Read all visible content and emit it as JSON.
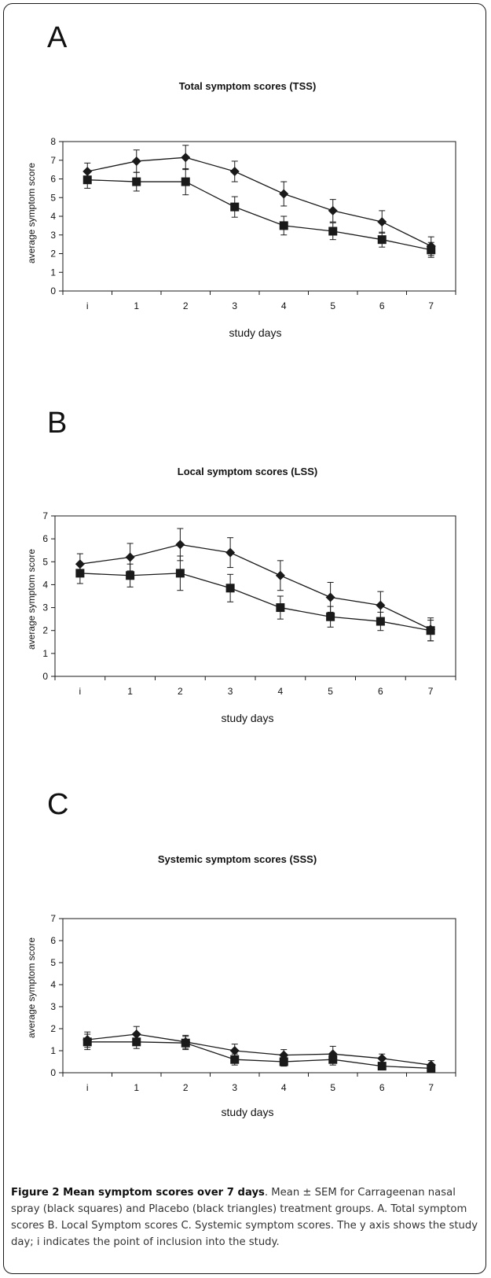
{
  "caption": {
    "title": "Figure 2 Mean symptom scores over 7 days",
    "body": ". Mean ± SEM for Carrageenan nasal spray (black squares) and Placebo (black triangles) treatment groups. A. Total symptom scores B. Local Symptom scores C. Systemic symptom scores. The y axis shows the study day; i indicates the point of inclusion into the study."
  },
  "colors": {
    "line": "#1a1a1a",
    "marker": "#1a1a1a",
    "frame": "#1a1a1a"
  },
  "chart_data": [
    {
      "type": "line",
      "panel": "A",
      "title": "Total symptom scores (TSS)",
      "xlabel": "study days",
      "ylabel": "average symptom score",
      "categories": [
        "i",
        "1",
        "2",
        "3",
        "4",
        "5",
        "6",
        "7"
      ],
      "ylim": [
        0,
        8
      ],
      "yticks": [
        0,
        1,
        2,
        3,
        4,
        5,
        6,
        7,
        8
      ],
      "grid": false,
      "legend": "none",
      "series": [
        {
          "marker": "diamond",
          "values": [
            6.4,
            6.95,
            7.15,
            6.4,
            5.2,
            4.3,
            3.7,
            2.4
          ],
          "errors": [
            0.45,
            0.6,
            0.65,
            0.55,
            0.65,
            0.6,
            0.6,
            0.5
          ]
        },
        {
          "marker": "square",
          "values": [
            5.95,
            5.85,
            5.85,
            4.5,
            3.5,
            3.2,
            2.75,
            2.2
          ],
          "errors": [
            0.45,
            0.5,
            0.7,
            0.55,
            0.5,
            0.45,
            0.4,
            0.4
          ]
        }
      ]
    },
    {
      "type": "line",
      "panel": "B",
      "title": "Local symptom scores (LSS)",
      "xlabel": "study days",
      "ylabel": "average symptom score",
      "categories": [
        "i",
        "1",
        "2",
        "3",
        "4",
        "5",
        "6",
        "7"
      ],
      "ylim": [
        0,
        7
      ],
      "yticks": [
        0,
        1,
        2,
        3,
        4,
        5,
        6,
        7
      ],
      "grid": false,
      "legend": "none",
      "series": [
        {
          "marker": "diamond",
          "values": [
            4.9,
            5.2,
            5.75,
            5.4,
            4.4,
            3.45,
            3.1,
            2.05
          ],
          "errors": [
            0.45,
            0.6,
            0.7,
            0.65,
            0.65,
            0.65,
            0.6,
            0.5
          ]
        },
        {
          "marker": "square",
          "values": [
            4.5,
            4.4,
            4.5,
            3.85,
            3.0,
            2.6,
            2.4,
            2.0
          ],
          "errors": [
            0.45,
            0.5,
            0.75,
            0.6,
            0.5,
            0.45,
            0.4,
            0.45
          ]
        }
      ]
    },
    {
      "type": "line",
      "panel": "C",
      "title": "Systemic symptom scores (SSS)",
      "xlabel": "study days",
      "ylabel": "average symptom score",
      "categories": [
        "i",
        "1",
        "2",
        "3",
        "4",
        "5",
        "6",
        "7"
      ],
      "ylim": [
        0,
        7
      ],
      "yticks": [
        0,
        1,
        2,
        3,
        4,
        5,
        6,
        7
      ],
      "grid": false,
      "legend": "none",
      "series": [
        {
          "marker": "diamond",
          "values": [
            1.5,
            1.75,
            1.4,
            1.0,
            0.8,
            0.85,
            0.65,
            0.35
          ],
          "errors": [
            0.35,
            0.35,
            0.3,
            0.3,
            0.25,
            0.35,
            0.2,
            0.2
          ]
        },
        {
          "marker": "square",
          "values": [
            1.4,
            1.4,
            1.35,
            0.6,
            0.5,
            0.6,
            0.3,
            0.2
          ],
          "errors": [
            0.35,
            0.3,
            0.3,
            0.25,
            0.2,
            0.25,
            0.15,
            0.15
          ]
        }
      ]
    }
  ]
}
